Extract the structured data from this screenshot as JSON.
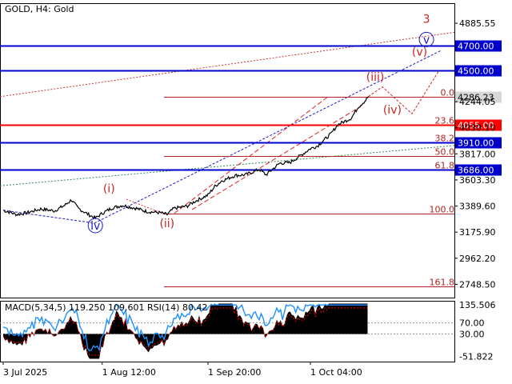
{
  "chart_data": {
    "type": "line",
    "title": "GOLD, H4:  Gold",
    "symbol": "GOLD",
    "timeframe": "H4",
    "instrument": "Gold",
    "current_price": "4286.23",
    "price_axis": {
      "ylim": [
        2640,
        5050
      ],
      "ticks": [
        "4885.55",
        "4244.05",
        "4030.10",
        "3817.00",
        "3603.30",
        "3389.60",
        "3175.90",
        "2962.20",
        "2748.50"
      ],
      "tick_values": [
        4885.55,
        4244.05,
        4030.1,
        3817.0,
        3603.3,
        3389.6,
        3175.9,
        2962.2,
        2748.5
      ]
    },
    "time_axis": {
      "labels": [
        "3 Jul 2025",
        "1 Aug 12:00",
        "1 Sep 20:00",
        "1 Oct 04:00"
      ],
      "label_dates": [
        "2025-07-03",
        "2025-08-01",
        "2025-09-01",
        "2025-10-01"
      ],
      "xlim": [
        "2025-07-03",
        "2025-10-25"
      ]
    },
    "price_series": {
      "name": "GOLD",
      "points": [
        [
          "2025-07-03",
          3355
        ],
        [
          "2025-07-07",
          3320
        ],
        [
          "2025-07-10",
          3335
        ],
        [
          "2025-07-14",
          3365
        ],
        [
          "2025-07-18",
          3350
        ],
        [
          "2025-07-21",
          3395
        ],
        [
          "2025-07-23",
          3440
        ],
        [
          "2025-07-25",
          3370
        ],
        [
          "2025-07-28",
          3320
        ],
        [
          "2025-07-30",
          3290
        ],
        [
          "2025-08-01",
          3330
        ],
        [
          "2025-08-04",
          3375
        ],
        [
          "2025-08-07",
          3395
        ],
        [
          "2025-08-11",
          3370
        ],
        [
          "2025-08-14",
          3345
        ],
        [
          "2025-08-18",
          3335
        ],
        [
          "2025-08-20",
          3320
        ],
        [
          "2025-08-22",
          3370
        ],
        [
          "2025-08-26",
          3390
        ],
        [
          "2025-08-28",
          3425
        ],
        [
          "2025-09-01",
          3480
        ],
        [
          "2025-09-03",
          3550
        ],
        [
          "2025-09-05",
          3595
        ],
        [
          "2025-09-09",
          3640
        ],
        [
          "2025-09-12",
          3645
        ],
        [
          "2025-09-16",
          3690
        ],
        [
          "2025-09-18",
          3645
        ],
        [
          "2025-09-22",
          3740
        ],
        [
          "2025-09-25",
          3745
        ],
        [
          "2025-09-29",
          3820
        ],
        [
          "2025-10-01",
          3860
        ],
        [
          "2025-10-03",
          3880
        ],
        [
          "2025-10-07",
          3980
        ],
        [
          "2025-10-09",
          4055
        ],
        [
          "2025-10-13",
          4110
        ],
        [
          "2025-10-15",
          4200
        ],
        [
          "2025-10-17",
          4250
        ],
        [
          "2025-10-18",
          4286.23
        ]
      ]
    },
    "levels": [
      {
        "label": "4700.00",
        "value": 4700.0,
        "color": "#0000cc"
      },
      {
        "label": "4500.00",
        "value": 4500.0,
        "color": "#0000cc"
      },
      {
        "label": "4055.00",
        "value": 4055.0,
        "color": "#ff0000"
      },
      {
        "label": "3910.00",
        "value": 3910.0,
        "color": "#0000cc"
      },
      {
        "label": "3686.00",
        "value": 3686.0,
        "color": "#0000cc"
      }
    ],
    "fibonacci": [
      {
        "label": "0.0",
        "value": 4286.0
      },
      {
        "label": "23.6",
        "value": 4055.0
      },
      {
        "label": "38.2",
        "value": 3910.0
      },
      {
        "label": "50.0",
        "value": 3800.0
      },
      {
        "label": "61.8",
        "value": 3686.0
      },
      {
        "label": "100.0",
        "value": 3325.0
      },
      {
        "label": "161.8",
        "value": 2730.0
      }
    ],
    "waves": [
      {
        "label": "(i)",
        "date": "2025-08-03",
        "value": 3500,
        "color": "#cc2222"
      },
      {
        "label": "(ii)",
        "date": "2025-08-20",
        "value": 3215,
        "color": "#cc2222"
      },
      {
        "label": "(iii)",
        "date": "2025-10-20",
        "value": 4415,
        "color": "#cc2222"
      },
      {
        "label": "(iv)",
        "date": "2025-10-25",
        "value": 4145,
        "color": "#cc2222"
      },
      {
        "label": "(v)",
        "date": "2025-11-02",
        "value": 4620,
        "color": "#cc2222"
      },
      {
        "label": "3",
        "date": "2025-11-04",
        "value": 4890,
        "color": "#cc2222"
      },
      {
        "label": "iv",
        "date": "2025-07-30",
        "value": 3197,
        "color": "#1a1acc",
        "circled": true
      },
      {
        "label": "v",
        "date": "2025-11-04",
        "value": 4720,
        "color": "#1a1acc",
        "circled": true
      }
    ],
    "indicator": {
      "label": "MACD(5,34,5) 119.250 109.601 RSI(14) 80.42",
      "ticks": [
        "135.506",
        "70.00",
        "30.00",
        "-51.822"
      ],
      "tick_values": [
        135.506,
        70.0,
        30.0,
        -51.822
      ],
      "ylim": [
        -70,
        150
      ]
    },
    "colors": {
      "support_resistance": "#0000cc",
      "fib_lines": "#b22222",
      "wave_labels": "#cc2222",
      "price": "#000000",
      "rsi": "#1e90ff",
      "macd_signal": "#ff0000"
    }
  }
}
